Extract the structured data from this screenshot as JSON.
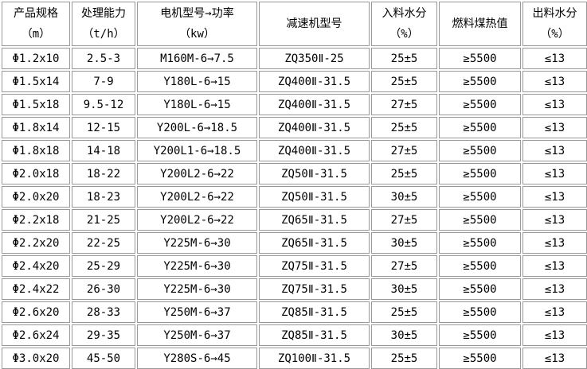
{
  "table": {
    "border_color": "#999999",
    "text_color": "#000000",
    "background_color": "#ffffff",
    "columns": [
      {
        "title": "产品规格",
        "unit": "（m）"
      },
      {
        "title": "处理能力",
        "unit": "（t/h）"
      },
      {
        "title": "电机型号→功率",
        "unit": "（kw）"
      },
      {
        "title": "减速机型号",
        "unit": ""
      },
      {
        "title": "入料水分",
        "unit": "（%）"
      },
      {
        "title": "燃料煤热值",
        "unit": ""
      },
      {
        "title": "出料水分",
        "unit": "（%）"
      }
    ],
    "rows": [
      [
        "Φ1.2x10",
        "2.5-3",
        "M160M-6→7.5",
        "ZQ350Ⅱ-25",
        "25±5",
        "≥5500",
        "≤13"
      ],
      [
        "Φ1.5x14",
        "7-9",
        "Y180L-6→15",
        "ZQ400Ⅱ-31.5",
        "25±5",
        "≥5500",
        "≤13"
      ],
      [
        "Φ1.5x18",
        "9.5-12",
        "Y180L-6→15",
        "ZQ400Ⅱ-31.5",
        "27±5",
        "≥5500",
        "≤13"
      ],
      [
        "Φ1.8x14",
        "12-15",
        "Y200L-6→18.5",
        "ZQ400Ⅱ-31.5",
        "25±5",
        "≥5500",
        "≤13"
      ],
      [
        "Φ1.8x18",
        "14-18",
        "Y200L1-6→18.5",
        "ZQ400Ⅱ-31.5",
        "27±5",
        "≥5500",
        "≤13"
      ],
      [
        "Φ2.0x18",
        "18-22",
        "Y200L2-6→22",
        "ZQ50Ⅱ-31.5",
        "25±5",
        "≥5500",
        "≤13"
      ],
      [
        "Φ2.0x20",
        "18-23",
        "Y200L2-6→22",
        "ZQ50Ⅱ-31.5",
        "30±5",
        "≥5500",
        "≤13"
      ],
      [
        "Φ2.2x18",
        "21-25",
        "Y200L2-6→22",
        "ZQ65Ⅱ-31.5",
        "27±5",
        "≥5500",
        "≤13"
      ],
      [
        "Φ2.2x20",
        "22-25",
        "Y225M-6→30",
        "ZQ65Ⅱ-31.5",
        "30±5",
        "≥5500",
        "≤13"
      ],
      [
        "Φ2.4x20",
        "25-29",
        "Y225M-6→30",
        "ZQ75Ⅱ-31.5",
        "27±5",
        "≥5500",
        "≤13"
      ],
      [
        "Φ2.4x22",
        "26-30",
        "Y225M-6→30",
        "ZQ75Ⅱ-31.5",
        "30±5",
        "≥5500",
        "≤13"
      ],
      [
        "Φ2.6x20",
        "28-33",
        "Y250M-6→37",
        "ZQ85Ⅱ-31.5",
        "25±5",
        "≥5500",
        "≤13"
      ],
      [
        "Φ2.6x24",
        "29-35",
        "Y250M-6→37",
        "ZQ85Ⅱ-31.5",
        "30±5",
        "≥5500",
        "≤13"
      ],
      [
        "Φ3.0x20",
        "45-50",
        "Y280S-6→45",
        "ZQ100Ⅱ-31.5",
        "25±5",
        "≥5500",
        "≤13"
      ]
    ]
  }
}
